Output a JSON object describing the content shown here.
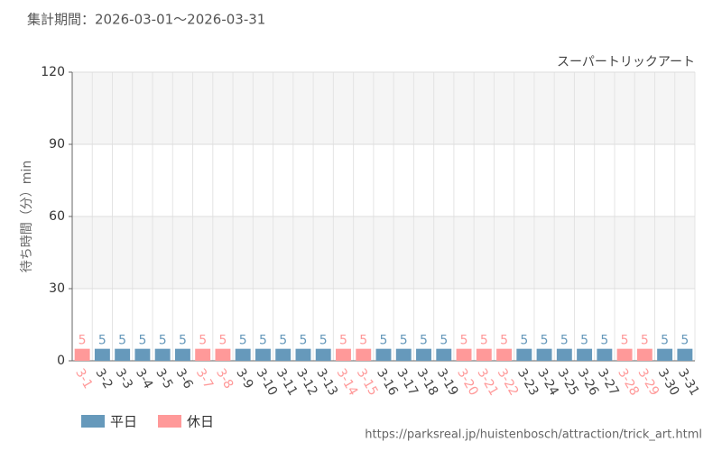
{
  "chart_data": {
    "type": "bar",
    "subtitle": "集計期間：2026-03-01〜2026-03-31",
    "title": "スーパートリックアート",
    "y_label": "待ち時間（分）min",
    "source": "https://parksreal.jp/huistenbosch/attraction/trick_art.html",
    "categories": [
      "3-1",
      "3-2",
      "3-3",
      "3-4",
      "3-5",
      "3-6",
      "3-7",
      "3-8",
      "3-9",
      "3-10",
      "3-11",
      "3-12",
      "3-13",
      "3-14",
      "3-15",
      "3-16",
      "3-17",
      "3-18",
      "3-19",
      "3-20",
      "3-21",
      "3-22",
      "3-23",
      "3-24",
      "3-25",
      "3-26",
      "3-27",
      "3-28",
      "3-29",
      "3-30",
      "3-31"
    ],
    "series": [
      {
        "name": "平日",
        "color": "#6699bb",
        "values": [
          null,
          5,
          5,
          5,
          5,
          5,
          null,
          null,
          5,
          5,
          5,
          5,
          5,
          null,
          null,
          5,
          5,
          5,
          5,
          null,
          null,
          null,
          5,
          5,
          5,
          5,
          5,
          null,
          null,
          5,
          5
        ]
      },
      {
        "name": "休日",
        "color": "#ff9999",
        "values": [
          5,
          null,
          null,
          null,
          null,
          null,
          5,
          5,
          null,
          null,
          null,
          null,
          null,
          5,
          5,
          null,
          null,
          null,
          null,
          5,
          5,
          5,
          null,
          null,
          null,
          null,
          null,
          5,
          5,
          null,
          null
        ]
      }
    ],
    "ylim": [
      0,
      120
    ],
    "yticks": [
      0,
      30,
      60,
      90,
      120
    ],
    "grid": true
  }
}
